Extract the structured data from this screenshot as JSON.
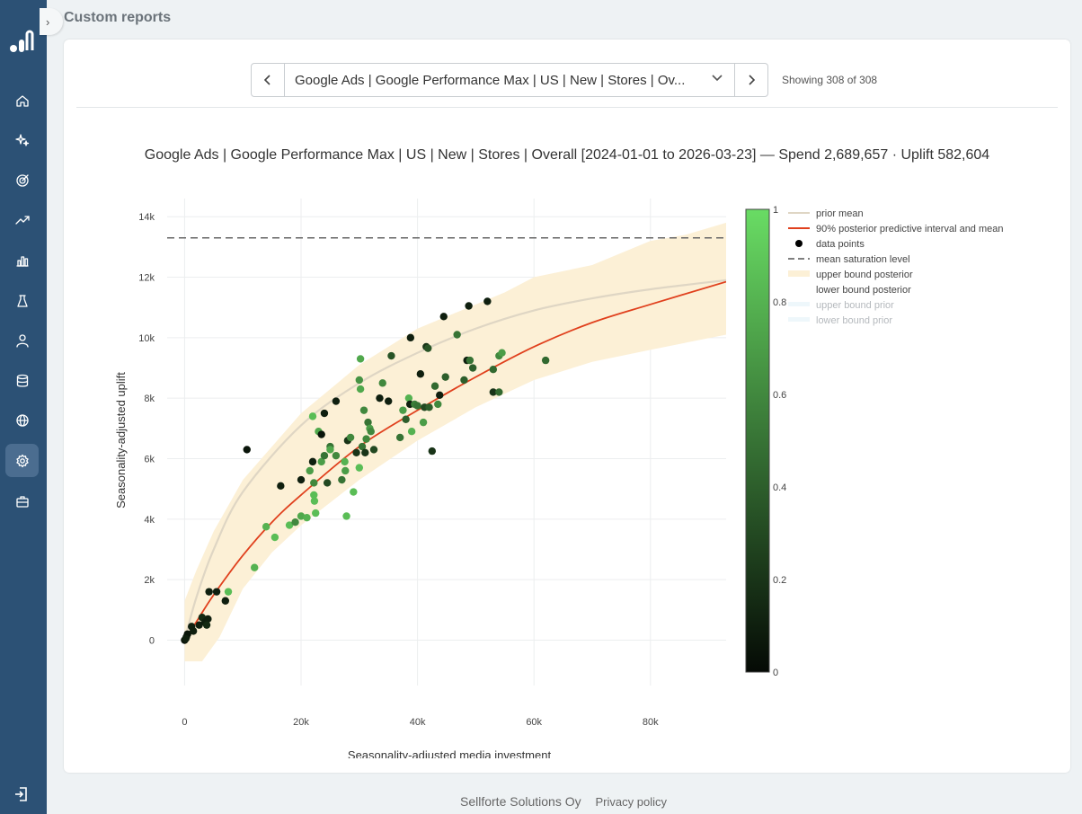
{
  "page": {
    "title": "Custom reports"
  },
  "sidebar": {
    "items": [
      {
        "icon": "home-icon"
      },
      {
        "icon": "sparkles-icon"
      },
      {
        "icon": "target-icon"
      },
      {
        "icon": "trending-up-icon"
      },
      {
        "icon": "bar-chart-icon"
      },
      {
        "icon": "flask-icon"
      },
      {
        "icon": "user-icon"
      },
      {
        "icon": "database-icon"
      },
      {
        "icon": "globe-icon"
      },
      {
        "icon": "settings-icon",
        "active": true
      },
      {
        "icon": "briefcase-icon"
      }
    ]
  },
  "selector": {
    "value": "Google Ads | Google Performance Max | US | New | Stores | Ov...",
    "count_text": "Showing 308 of 308"
  },
  "footer": {
    "company": "Sellforte Solutions Oy",
    "privacy": "Privacy policy"
  },
  "colors": {
    "sidebar": "#2c5175",
    "curve": "#e0401d",
    "band": "#fcf0d6",
    "prior": "#dfd6c4"
  },
  "chart_data": {
    "type": "scatter",
    "title": "Google Ads | Google Performance Max | US | New | Stores | Overall [2024-01-01 to 2026-03-23] — Spend 2,689,657 · Uplift 582,604",
    "xlabel": "Seasonality-adjusted media investment",
    "ylabel": "Seasonality-adjusted uplift",
    "xlim": [
      -3000,
      93000
    ],
    "ylim": [
      -1500,
      14600
    ],
    "x_ticks": [
      0,
      20000,
      40000,
      60000,
      80000
    ],
    "x_tick_labels": [
      "0",
      "20k",
      "40k",
      "60k",
      "80k"
    ],
    "y_ticks": [
      0,
      2000,
      4000,
      6000,
      8000,
      10000,
      12000,
      14000
    ],
    "y_tick_labels": [
      "0",
      "2k",
      "4k",
      "6k",
      "8k",
      "10k",
      "12k",
      "14k"
    ],
    "saturation_level": 13300,
    "legend": {
      "position": "right",
      "items": [
        {
          "label": "prior mean",
          "style": "prior"
        },
        {
          "label": "90% posterior predictive interval and mean",
          "style": "posterior"
        },
        {
          "label": "data points",
          "style": "points"
        },
        {
          "label": "mean saturation level",
          "style": "dash"
        },
        {
          "label": "upper bound posterior",
          "style": "band"
        },
        {
          "label": "lower bound posterior",
          "style": "none"
        },
        {
          "label": "upper bound prior",
          "style": "faded"
        },
        {
          "label": "lower bound prior",
          "style": "faded"
        }
      ]
    },
    "colorbar": {
      "ticks": [
        "0",
        "0.2",
        "0.4",
        "0.6",
        "0.8",
        "1"
      ]
    },
    "prior_mean": [
      [
        0,
        0
      ],
      [
        2000,
        1400
      ],
      [
        5000,
        3000
      ],
      [
        10000,
        4900
      ],
      [
        20000,
        7100
      ],
      [
        30000,
        8500
      ],
      [
        40000,
        9500
      ],
      [
        50000,
        10300
      ],
      [
        60000,
        10900
      ],
      [
        70000,
        11300
      ],
      [
        80000,
        11600
      ],
      [
        93000,
        11900
      ]
    ],
    "posterior_mean": [
      [
        0,
        0
      ],
      [
        2000,
        600
      ],
      [
        5000,
        1500
      ],
      [
        10000,
        2800
      ],
      [
        15000,
        3900
      ],
      [
        20000,
        4800
      ],
      [
        30000,
        6400
      ],
      [
        40000,
        7600
      ],
      [
        50000,
        8700
      ],
      [
        60000,
        9700
      ],
      [
        70000,
        10500
      ],
      [
        80000,
        11100
      ],
      [
        93000,
        11850
      ]
    ],
    "posterior_upper": [
      [
        0,
        1300
      ],
      [
        2000,
        2300
      ],
      [
        5000,
        3600
      ],
      [
        10000,
        5300
      ],
      [
        20000,
        7500
      ],
      [
        30000,
        9100
      ],
      [
        40000,
        10300
      ],
      [
        50000,
        11100
      ],
      [
        55000,
        11500
      ],
      [
        60000,
        12000
      ],
      [
        70000,
        12400
      ],
      [
        80000,
        13200
      ],
      [
        86000,
        13400
      ],
      [
        93000,
        13800
      ]
    ],
    "posterior_lower": [
      [
        0,
        -700
      ],
      [
        3000,
        -700
      ],
      [
        6000,
        100
      ],
      [
        10000,
        1700
      ],
      [
        15000,
        2900
      ],
      [
        20000,
        3800
      ],
      [
        30000,
        5300
      ],
      [
        40000,
        6600
      ],
      [
        50000,
        7700
      ],
      [
        60000,
        8600
      ],
      [
        70000,
        9200
      ],
      [
        80000,
        9600
      ],
      [
        93000,
        10100
      ]
    ],
    "points": [
      [
        0,
        0,
        0.05
      ],
      [
        300,
        100,
        0.05
      ],
      [
        500,
        200,
        0.05
      ],
      [
        200,
        50,
        0.1
      ],
      [
        1200,
        450,
        0.1
      ],
      [
        1500,
        300,
        0.1
      ],
      [
        2500,
        500,
        0.1
      ],
      [
        3000,
        750,
        0.15
      ],
      [
        3500,
        600,
        0.1
      ],
      [
        4000,
        700,
        0.1
      ],
      [
        3800,
        500,
        0.15
      ],
      [
        4200,
        1600,
        0.1
      ],
      [
        5500,
        1600,
        0.1
      ],
      [
        7000,
        1300,
        0.1
      ],
      [
        7500,
        1600,
        0.85
      ],
      [
        10700,
        6300,
        0.05
      ],
      [
        12000,
        2400,
        0.8
      ],
      [
        14000,
        3750,
        0.8
      ],
      [
        15500,
        3400,
        0.85
      ],
      [
        16500,
        5100,
        0.1
      ],
      [
        18000,
        3800,
        0.85
      ],
      [
        19000,
        3900,
        0.6
      ],
      [
        20000,
        4100,
        0.75
      ],
      [
        20000,
        5300,
        0.1
      ],
      [
        21000,
        4050,
        0.8
      ],
      [
        21500,
        5600,
        0.7
      ],
      [
        22000,
        5900,
        0.1
      ],
      [
        22000,
        7400,
        0.85
      ],
      [
        22200,
        5200,
        0.6
      ],
      [
        22200,
        4800,
        0.85
      ],
      [
        22300,
        4600,
        0.85
      ],
      [
        22500,
        4200,
        0.85
      ],
      [
        23000,
        6900,
        0.75
      ],
      [
        23500,
        6800,
        0.05
      ],
      [
        23500,
        5900,
        0.7
      ],
      [
        24000,
        7500,
        0.1
      ],
      [
        24000,
        6100,
        0.5
      ],
      [
        24500,
        5200,
        0.3
      ],
      [
        25000,
        6400,
        0.5
      ],
      [
        25000,
        6300,
        0.75
      ],
      [
        26000,
        7900,
        0.1
      ],
      [
        26000,
        6100,
        0.6
      ],
      [
        27000,
        5300,
        0.5
      ],
      [
        27500,
        5900,
        0.8
      ],
      [
        27600,
        5600,
        0.7
      ],
      [
        27800,
        4100,
        0.85
      ],
      [
        28000,
        6600,
        0.2
      ],
      [
        28500,
        6700,
        0.6
      ],
      [
        29000,
        4900,
        0.85
      ],
      [
        29500,
        6200,
        0.2
      ],
      [
        30000,
        5700,
        0.85
      ],
      [
        30000,
        8600,
        0.65
      ],
      [
        30200,
        8300,
        0.75
      ],
      [
        30200,
        9300,
        0.75
      ],
      [
        30500,
        6400,
        0.5
      ],
      [
        30800,
        7600,
        0.6
      ],
      [
        31000,
        6200,
        0.2
      ],
      [
        31200,
        6650,
        0.6
      ],
      [
        31500,
        7200,
        0.5
      ],
      [
        31800,
        7000,
        0.7
      ],
      [
        32000,
        6900,
        0.6
      ],
      [
        32500,
        6300,
        0.3
      ],
      [
        33500,
        8000,
        0.1
      ],
      [
        34000,
        8500,
        0.6
      ],
      [
        35000,
        7900,
        0.1
      ],
      [
        35500,
        9400,
        0.35
      ],
      [
        37000,
        6700,
        0.5
      ],
      [
        37500,
        7600,
        0.7
      ],
      [
        38000,
        7300,
        0.4
      ],
      [
        38500,
        8000,
        0.8
      ],
      [
        38700,
        7800,
        0.1
      ],
      [
        38800,
        10000,
        0.1
      ],
      [
        39000,
        6900,
        0.8
      ],
      [
        39500,
        7800,
        0.55
      ],
      [
        40000,
        7750,
        0.5
      ],
      [
        40500,
        8800,
        0.1
      ],
      [
        41000,
        7200,
        0.7
      ],
      [
        41200,
        7700,
        0.3
      ],
      [
        41500,
        9700,
        0.2
      ],
      [
        41800,
        9650,
        0.35
      ],
      [
        42000,
        7700,
        0.4
      ],
      [
        42500,
        6250,
        0.2
      ],
      [
        43000,
        8400,
        0.45
      ],
      [
        43500,
        7800,
        0.6
      ],
      [
        43800,
        8100,
        0.1
      ],
      [
        44500,
        10700,
        0.1
      ],
      [
        44800,
        8700,
        0.4
      ],
      [
        46800,
        10100,
        0.5
      ],
      [
        48000,
        8600,
        0.4
      ],
      [
        48500,
        9250,
        0.1
      ],
      [
        48800,
        11050,
        0.1
      ],
      [
        49000,
        9250,
        0.5
      ],
      [
        49500,
        9000,
        0.4
      ],
      [
        52000,
        11200,
        0.1
      ],
      [
        53000,
        8950,
        0.45
      ],
      [
        53000,
        8200,
        0.2
      ],
      [
        54000,
        8200,
        0.45
      ],
      [
        54000,
        9400,
        0.6
      ],
      [
        54500,
        9500,
        0.7
      ],
      [
        62000,
        9250,
        0.45
      ]
    ]
  }
}
